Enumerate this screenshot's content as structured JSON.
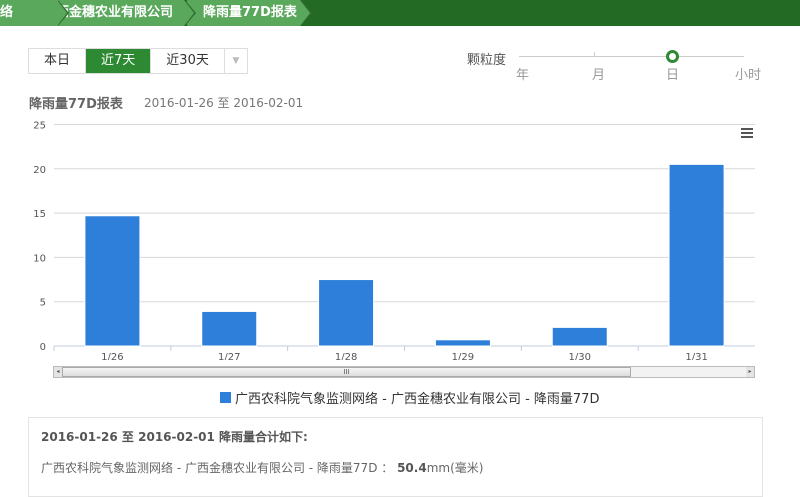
{
  "breadcrumb": [
    "络",
    "广西金穗农业有限公司",
    "降雨量77D报表"
  ],
  "range_buttons": [
    {
      "label": "本日",
      "active": false
    },
    {
      "label": "近7天",
      "active": true
    },
    {
      "label": "近30天",
      "active": false
    }
  ],
  "granularity": {
    "label": "颗粒度",
    "options": [
      "年",
      "月",
      "日",
      "小时"
    ],
    "selected": "日"
  },
  "report": {
    "title": "降雨量77D报表",
    "date_range": "2016-01-26 至 2016-02-01"
  },
  "chart_data": {
    "type": "bar",
    "categories": [
      "1/26",
      "1/27",
      "1/28",
      "1/29",
      "1/30",
      "1/31"
    ],
    "series": [
      {
        "name": "广西农科院气象监测网络 - 广西金穗农业有限公司 - 降雨量77D",
        "values": [
          14.7,
          3.9,
          7.5,
          0.7,
          2.1,
          20.5
        ]
      }
    ],
    "yticks": [
      0,
      5,
      10,
      15,
      20,
      25
    ],
    "ylim": [
      0,
      25
    ],
    "grid": true,
    "legend": "bottom",
    "color": "#2e7fd9"
  },
  "summary": {
    "heading": "2016-01-26 至 2016-02-01 降雨量合计如下:",
    "label": "广西农科院气象监测网络 - 广西金穗农业有限公司 - 降雨量77D ：",
    "value": "50.4",
    "unit": "mm(毫米)"
  }
}
